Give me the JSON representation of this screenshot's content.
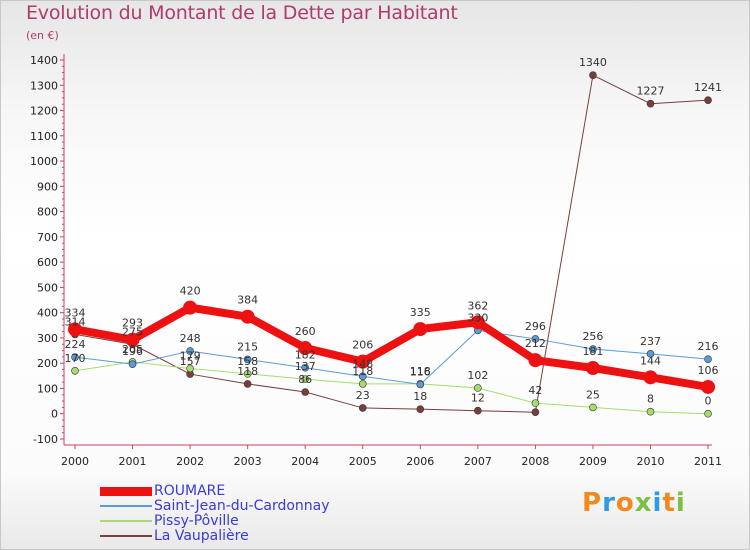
{
  "title": "Evolution du Montant de la Dette par Habitant",
  "subtitle": "(en €)",
  "logo": {
    "text": "Proxiti",
    "letters": [
      {
        "ch": "P",
        "color": "#f08a1c"
      },
      {
        "ch": "r",
        "color": "#2f9be0"
      },
      {
        "ch": "o",
        "color": "#f08a1c"
      },
      {
        "ch": "x",
        "color": "#7ac142"
      },
      {
        "ch": "i",
        "color": "#2f9be0"
      },
      {
        "ch": "t",
        "color": "#f08a1c"
      },
      {
        "ch": "i",
        "color": "#7ac142"
      }
    ]
  },
  "chart_data": {
    "type": "line",
    "categories": [
      "2000",
      "2001",
      "2002",
      "2003",
      "2004",
      "2005",
      "2006",
      "2007",
      "2008",
      "2009",
      "2010",
      "2011"
    ],
    "ylim": [
      -100,
      1400
    ],
    "ytick_step": 100,
    "grid": false,
    "legend_position": "bottom-left",
    "series": [
      {
        "name": "ROUMARE",
        "color": "#ee1111",
        "width": 8,
        "values": [
          334,
          293,
          420,
          384,
          260,
          206,
          335,
          362,
          212,
          181,
          144,
          106
        ],
        "labels": [
          "334",
          "293",
          "420",
          "384",
          "260",
          "206",
          "335",
          "362",
          "212",
          "181",
          "144",
          "106"
        ]
      },
      {
        "name": "Saint-Jean-du-Cardonnay",
        "color": "#5b9bd5",
        "width": 1,
        "values": [
          224,
          196,
          248,
          215,
          182,
          148,
          116,
          330,
          296,
          256,
          237,
          216
        ],
        "labels": [
          "224",
          "196",
          "248",
          "215",
          "182",
          "148",
          "116",
          "330",
          "296",
          "256",
          "237",
          "216"
        ]
      },
      {
        "name": "Pissy-Pôville",
        "color": "#a6dc6e",
        "width": 1,
        "values": [
          170,
          205,
          179,
          158,
          137,
          118,
          118,
          102,
          42,
          25,
          8,
          0
        ],
        "labels": [
          "170",
          "205",
          "179",
          "158",
          "137",
          "118",
          "118",
          "102",
          "42",
          "25",
          "8",
          "0"
        ]
      },
      {
        "name": "La Vaupalière",
        "color": "#7a3d3d",
        "width": 1,
        "values": [
          314,
          275,
          157,
          118,
          86,
          23,
          18,
          12,
          6,
          1340,
          1227,
          1241
        ],
        "labels": [
          "314",
          "275",
          "157",
          "118",
          "86",
          "23",
          "18",
          "12",
          "",
          "1340",
          "1227",
          "1241"
        ]
      }
    ]
  }
}
